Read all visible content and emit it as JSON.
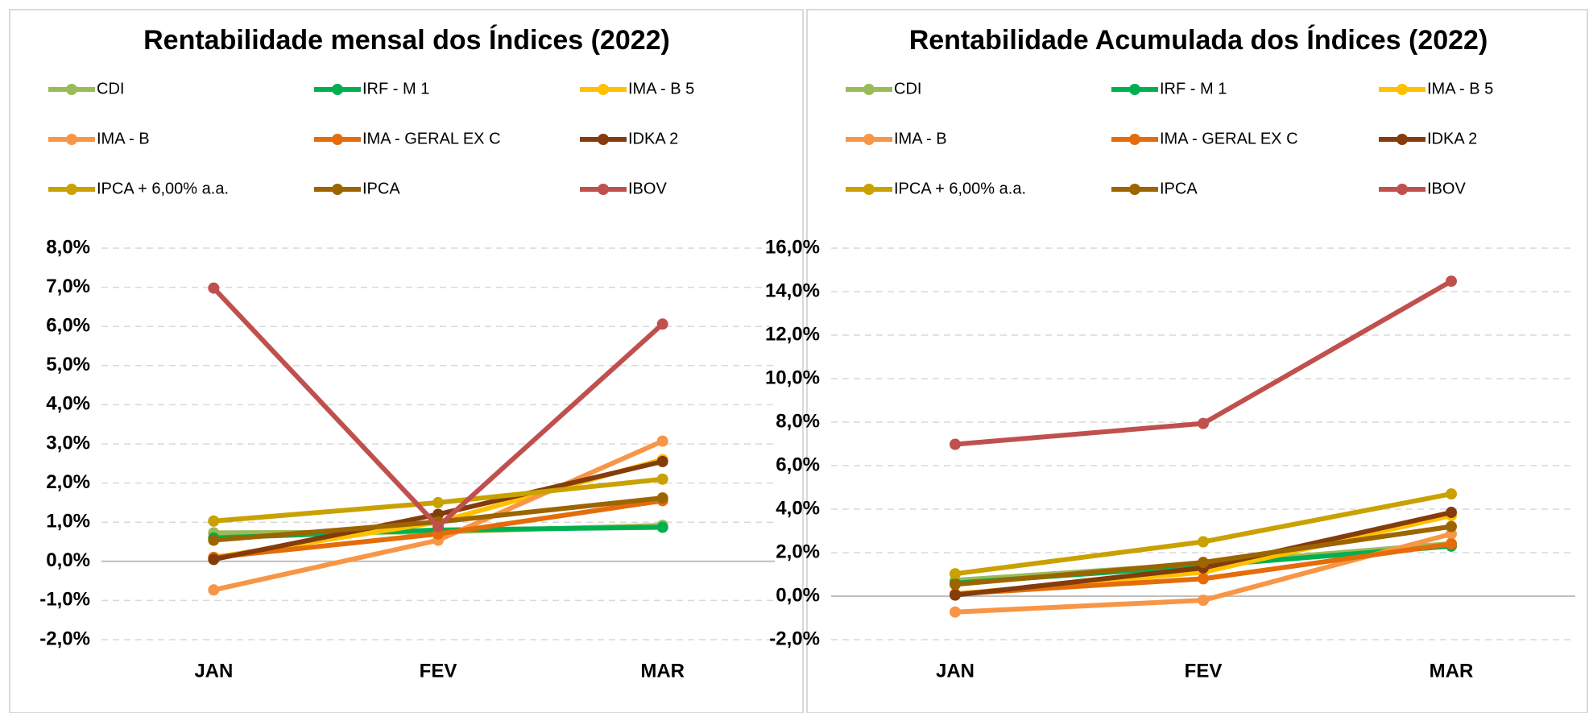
{
  "chart_data": [
    {
      "type": "line",
      "title": "Rentabilidade mensal dos Índices (2022)",
      "categories": [
        "JAN",
        "FEV",
        "MAR"
      ],
      "ylim": [
        -2,
        8
      ],
      "yticks": [
        {
          "value": -2,
          "label": "-2,0%"
        },
        {
          "value": -1,
          "label": "-1,0%"
        },
        {
          "value": 0,
          "label": "0,0%"
        },
        {
          "value": 1,
          "label": "1,0%"
        },
        {
          "value": 2,
          "label": "2,0%"
        },
        {
          "value": 3,
          "label": "3,0%"
        },
        {
          "value": 4,
          "label": "4,0%"
        },
        {
          "value": 5,
          "label": "5,0%"
        },
        {
          "value": 6,
          "label": "6,0%"
        },
        {
          "value": 7,
          "label": "7,0%"
        },
        {
          "value": 8,
          "label": "8,0%"
        }
      ],
      "grid": true,
      "legend": "top",
      "series": [
        {
          "name": "CDI",
          "color": "#9bbb59",
          "values": [
            0.73,
            0.75,
            0.92
          ]
        },
        {
          "name": "IRF - M 1",
          "color": "#00b050",
          "values": [
            0.6,
            0.8,
            0.87
          ]
        },
        {
          "name": "IMA - B 5",
          "color": "#ffc000",
          "values": [
            0.1,
            1.0,
            2.6
          ]
        },
        {
          "name": "IMA - B",
          "color": "#f79646",
          "values": [
            -0.73,
            0.54,
            3.07
          ]
        },
        {
          "name": "IMA - GERAL EX C",
          "color": "#e46c0a",
          "values": [
            0.1,
            0.7,
            1.55
          ]
        },
        {
          "name": "IDKA 2",
          "color": "#843c0c",
          "values": [
            0.05,
            1.2,
            2.55
          ]
        },
        {
          "name": "IPCA + 6,00% a.a.",
          "color": "#c9a100",
          "values": [
            1.03,
            1.5,
            2.1
          ]
        },
        {
          "name": "IPCA",
          "color": "#9c6500",
          "values": [
            0.54,
            1.01,
            1.62
          ]
        },
        {
          "name": "IBOV",
          "color": "#c0504d",
          "values": [
            6.98,
            0.89,
            6.06
          ]
        }
      ]
    },
    {
      "type": "line",
      "title": "Rentabilidade Acumulada dos Índices (2022)",
      "categories": [
        "JAN",
        "FEV",
        "MAR"
      ],
      "ylim": [
        -2,
        16
      ],
      "yticks": [
        {
          "value": -2,
          "label": "-2,0%"
        },
        {
          "value": 0,
          "label": "0,0%"
        },
        {
          "value": 2,
          "label": "2,0%"
        },
        {
          "value": 4,
          "label": "4,0%"
        },
        {
          "value": 6,
          "label": "6,0%"
        },
        {
          "value": 8,
          "label": "8,0%"
        },
        {
          "value": 10,
          "label": "10,0%"
        },
        {
          "value": 12,
          "label": "12,0%"
        },
        {
          "value": 14,
          "label": "14,0%"
        },
        {
          "value": 16,
          "label": "16,0%"
        }
      ],
      "grid": true,
      "legend": "top",
      "series": [
        {
          "name": "CDI",
          "color": "#9bbb59",
          "values": [
            0.73,
            1.49,
            2.42
          ]
        },
        {
          "name": "IRF - M 1",
          "color": "#00b050",
          "values": [
            0.6,
            1.4,
            2.3
          ]
        },
        {
          "name": "IMA - B 5",
          "color": "#ffc000",
          "values": [
            0.1,
            1.1,
            3.7
          ]
        },
        {
          "name": "IMA - B",
          "color": "#f79646",
          "values": [
            -0.73,
            -0.19,
            2.86
          ]
        },
        {
          "name": "IMA - GERAL EX C",
          "color": "#e46c0a",
          "values": [
            0.1,
            0.8,
            2.4
          ]
        },
        {
          "name": "IDKA 2",
          "color": "#843c0c",
          "values": [
            0.05,
            1.3,
            3.85
          ]
        },
        {
          "name": "IPCA + 6,00% a.a.",
          "color": "#c9a100",
          "values": [
            1.03,
            2.5,
            4.7
          ]
        },
        {
          "name": "IPCA",
          "color": "#9c6500",
          "values": [
            0.54,
            1.55,
            3.2
          ]
        },
        {
          "name": "IBOV",
          "color": "#c0504d",
          "values": [
            6.98,
            7.94,
            14.48
          ]
        }
      ]
    }
  ]
}
